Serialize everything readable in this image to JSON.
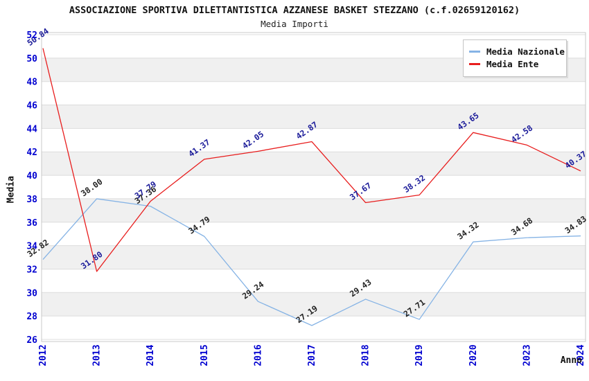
{
  "title": "ASSOCIAZIONE SPORTIVA DILETTANTISTICA AZZANESE BASKET STEZZANO (c.f.02659120162)",
  "subtitle": "Media Importi",
  "chart_data": {
    "type": "line",
    "x": [
      "2012",
      "2013",
      "2014",
      "2015",
      "2016",
      "2017",
      "2018",
      "2019",
      "2020",
      "2023",
      "2024"
    ],
    "series": [
      {
        "name": "Media Nazionale",
        "color": "#85b3e5",
        "label_color": "#222222",
        "values": [
          32.82,
          38.0,
          37.36,
          34.79,
          29.24,
          27.19,
          29.43,
          27.71,
          34.32,
          34.68,
          34.83
        ]
      },
      {
        "name": "Media Ente",
        "color": "#e81d1d",
        "label_color": "#1a1a99",
        "values": [
          50.84,
          31.8,
          37.79,
          41.37,
          42.05,
          42.87,
          37.67,
          38.32,
          43.65,
          42.58,
          40.37
        ]
      }
    ],
    "xlabel": "Anno",
    "ylabel": "Media",
    "ylim": [
      26,
      52
    ],
    "yticks": [
      26,
      28,
      30,
      32,
      34,
      36,
      38,
      40,
      42,
      44,
      46,
      48,
      50,
      52
    ],
    "grid": "horizontal-bands",
    "legend_position": "top-right",
    "band_color": "#f0f0f0",
    "gridline_color": "#dcdcdc",
    "border_color": "#c8c8c8",
    "tick_color": "#0000d0",
    "value_label_decimals": 2
  }
}
